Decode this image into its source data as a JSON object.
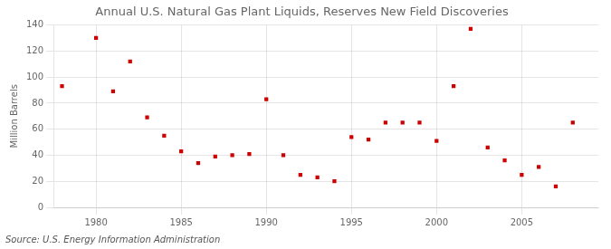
{
  "chart_data": {
    "type": "scatter",
    "title": "Annual U.S. Natural Gas Plant Liquids, Reserves New Field Discoveries",
    "ylabel": "Million Barrels",
    "annotations": [
      "Source: U.S. Energy Information Administration"
    ],
    "x": [
      1978,
      1980,
      1981,
      1982,
      1983,
      1984,
      1985,
      1986,
      1987,
      1988,
      1989,
      1990,
      1991,
      1992,
      1993,
      1994,
      1995,
      1996,
      1997,
      1998,
      1999,
      2000,
      2001,
      2002,
      2003,
      2004,
      2005,
      2006,
      2007,
      2008
    ],
    "values": [
      93,
      130,
      89,
      112,
      69,
      55,
      43,
      34,
      39,
      40,
      41,
      83,
      40,
      25,
      23,
      20,
      54,
      52,
      65,
      65,
      65,
      51,
      93,
      137,
      46,
      36,
      25,
      31,
      16,
      65
    ],
    "color": "#cc0000",
    "marker": "square",
    "xlim": [
      1977.5,
      2009.5
    ],
    "xticks": [
      1980,
      1985,
      1990,
      1995,
      2000,
      2005
    ],
    "ylim": [
      0,
      140
    ],
    "yticks": [
      0,
      20,
      40,
      60,
      80,
      100,
      120,
      140
    ],
    "grid": true
  }
}
